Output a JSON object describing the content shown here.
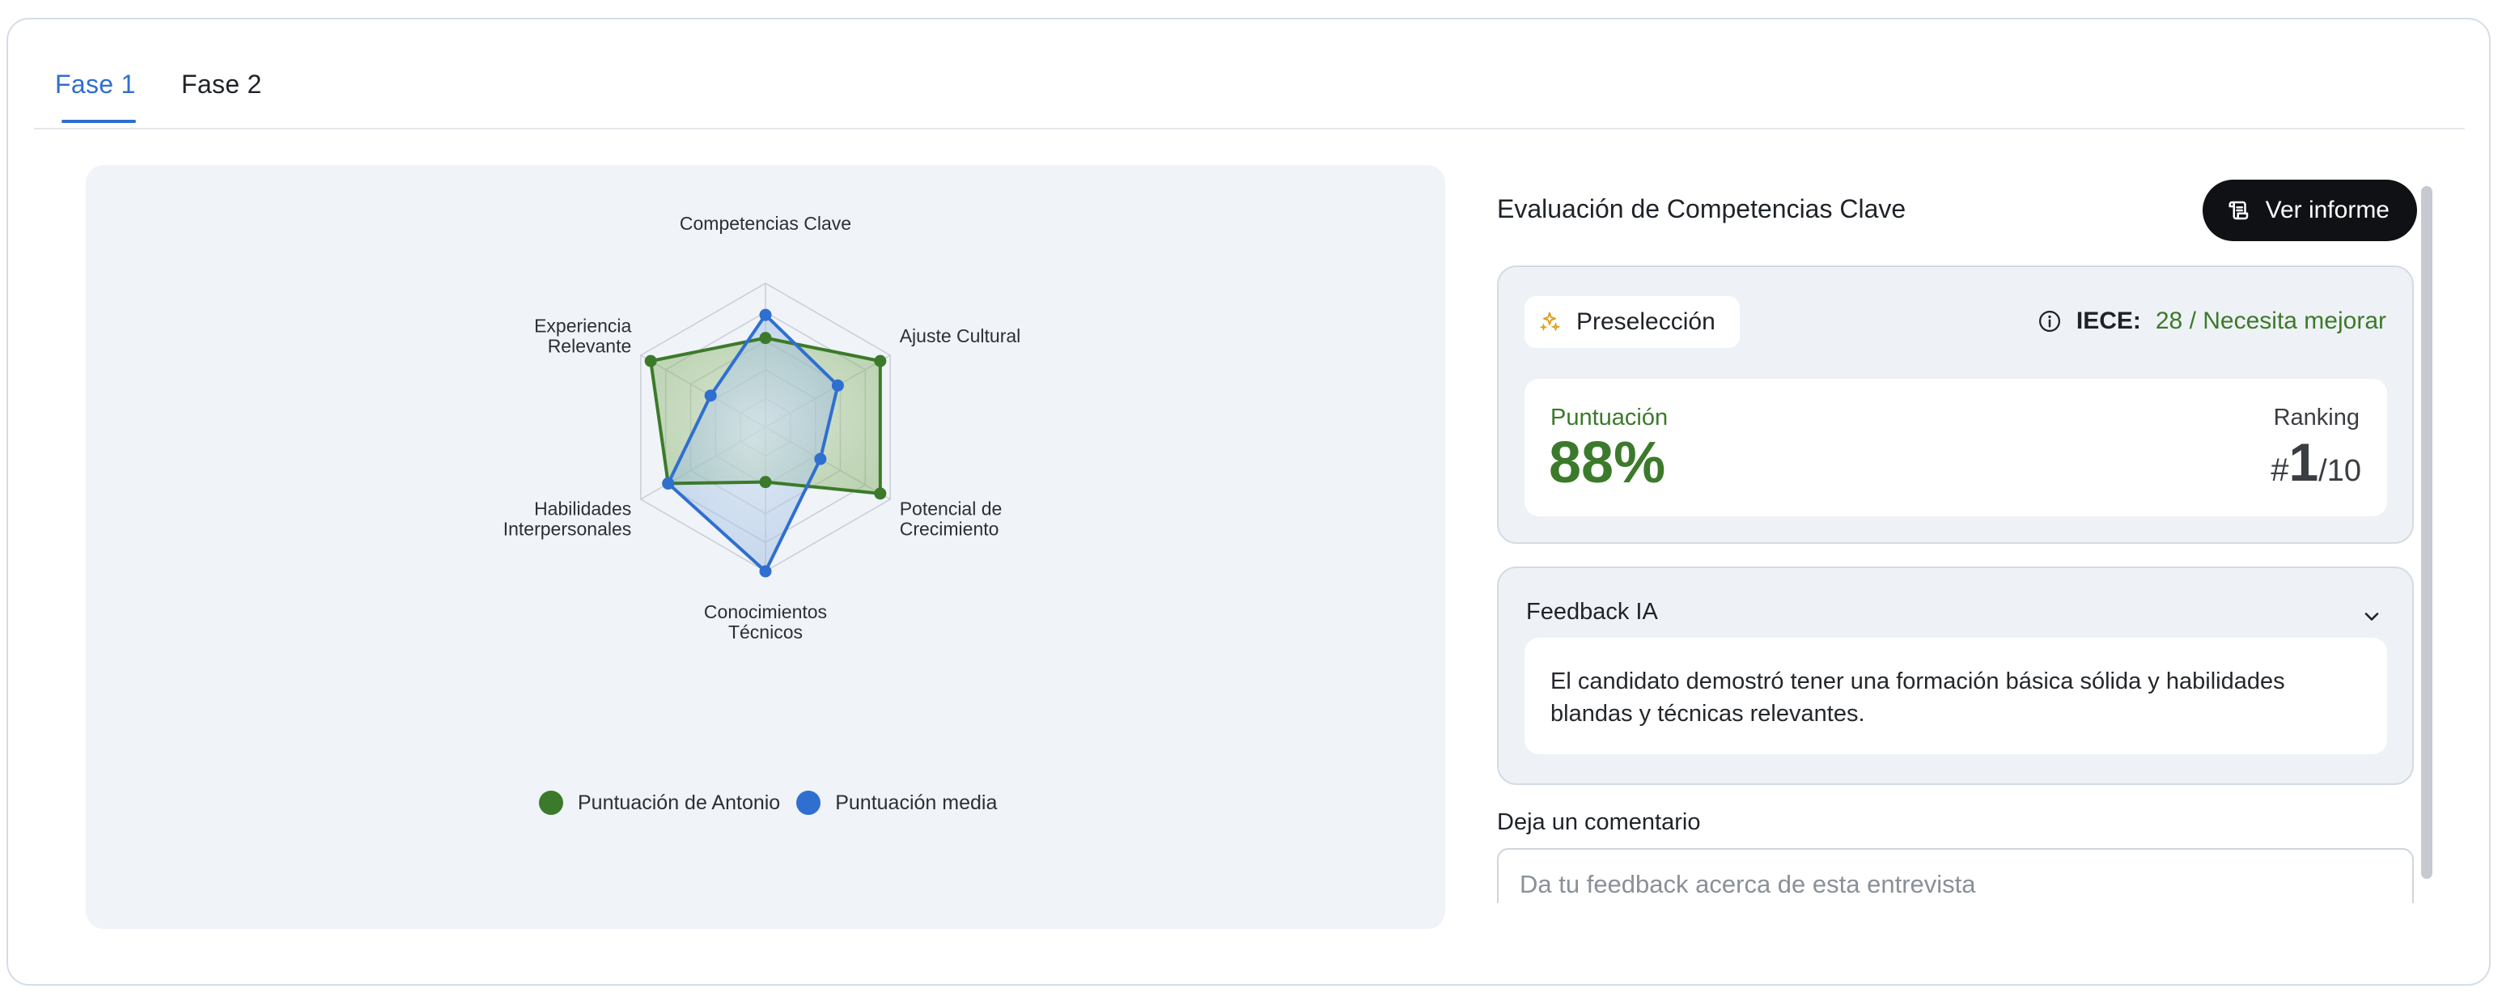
{
  "tabs": [
    {
      "label": "Fase 1",
      "active": true
    },
    {
      "label": "Fase 2",
      "active": false
    }
  ],
  "chart_data": {
    "type": "radar",
    "axes": [
      "Competencias Clave",
      "Ajuste Cultural",
      "Potencial de Crecimiento",
      "Conocimientos Técnicos",
      "Habilidades Interpersonales",
      "Experiencia Relevante"
    ],
    "axis_label_lines": [
      [
        "Competencias Clave"
      ],
      [
        "Ajuste Cultural"
      ],
      [
        "Potencial de",
        "Crecimiento"
      ],
      [
        "Conocimientos",
        "Técnicos"
      ],
      [
        "Habilidades",
        "Interpersonales"
      ],
      [
        "Experiencia",
        "Relevante"
      ]
    ],
    "range": [
      0,
      100
    ],
    "grid_levels": 5,
    "series": [
      {
        "name": "Puntuación de Antonio",
        "color": "#3b7a2a",
        "values": [
          62,
          92,
          92,
          38,
          78,
          92
        ]
      },
      {
        "name": "Puntuación media",
        "color": "#2f6fd0",
        "values": [
          78,
          58,
          44,
          100,
          78,
          44
        ]
      }
    ],
    "legend_position": "bottom"
  },
  "assessment": {
    "title": "Evaluación de Competencias Clave",
    "report_button": "Ver informe",
    "chip_label": "Preselección",
    "iece_label": "IECE:",
    "iece_value": "28 / Necesita mejorar",
    "score_label": "Puntuación",
    "score_value": "88%",
    "ranking_label": "Ranking",
    "ranking_hash": "#",
    "ranking_position": "1",
    "ranking_total": "/10"
  },
  "feedback": {
    "title": "Feedback IA",
    "text": "El candidato demostró tener una formación básica sólida y habilidades blandas y técnicas relevantes."
  },
  "comment": {
    "label": "Deja un comentario",
    "placeholder": "Da tu feedback acerca de esta entrevista"
  },
  "colors": {
    "accent": "#2f6fd0",
    "success": "#3b7a2a",
    "dark_button": "#0f1115"
  }
}
